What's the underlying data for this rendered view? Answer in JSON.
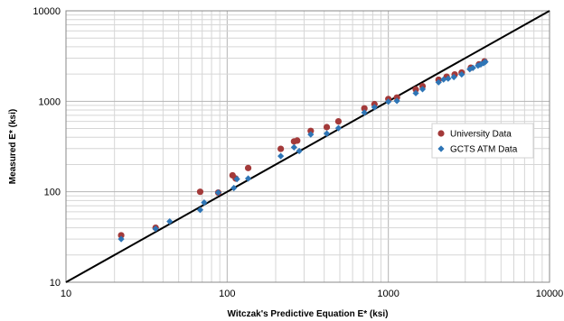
{
  "chart_data": {
    "type": "scatter",
    "title": "",
    "xlabel": "Witczak's Predictive Equation E* (ksi)",
    "ylabel": "Measured  E* (ksi)",
    "xscale": "log",
    "yscale": "log",
    "xlim": [
      10,
      10000
    ],
    "ylim": [
      10,
      10000
    ],
    "x_ticks": [
      "10",
      "100",
      "1000",
      "10000"
    ],
    "y_ticks": [
      "10",
      "100",
      "1000",
      "10000"
    ],
    "grid": true,
    "legend_position": "right",
    "equality_line": {
      "from": [
        10,
        10
      ],
      "to": [
        10000,
        10000
      ],
      "color": "#000000"
    },
    "series": [
      {
        "name": "University Data",
        "marker": "circle",
        "color": "#a33a3a",
        "points": [
          [
            22,
            33
          ],
          [
            36,
            40
          ],
          [
            68,
            100
          ],
          [
            88,
            98
          ],
          [
            108,
            152
          ],
          [
            113,
            140
          ],
          [
            135,
            183
          ],
          [
            215,
            298
          ],
          [
            260,
            360
          ],
          [
            272,
            368
          ],
          [
            330,
            470
          ],
          [
            415,
            518
          ],
          [
            490,
            600
          ],
          [
            710,
            835
          ],
          [
            820,
            930
          ],
          [
            1000,
            1060
          ],
          [
            1130,
            1100
          ],
          [
            1480,
            1350
          ],
          [
            1630,
            1470
          ],
          [
            2050,
            1730
          ],
          [
            2300,
            1870
          ],
          [
            2580,
            1980
          ],
          [
            2850,
            2080
          ],
          [
            3250,
            2350
          ],
          [
            3650,
            2560
          ],
          [
            3950,
            2760
          ]
        ]
      },
      {
        "name": "GCTS ATM Data",
        "marker": "diamond",
        "color": "#2e75b6",
        "points": [
          [
            22,
            30
          ],
          [
            36,
            39
          ],
          [
            44,
            47
          ],
          [
            68,
            63
          ],
          [
            72,
            76
          ],
          [
            88,
            98
          ],
          [
            110,
            110
          ],
          [
            115,
            138
          ],
          [
            135,
            140
          ],
          [
            215,
            248
          ],
          [
            260,
            310
          ],
          [
            280,
            282
          ],
          [
            330,
            430
          ],
          [
            415,
            440
          ],
          [
            490,
            505
          ],
          [
            710,
            750
          ],
          [
            820,
            860
          ],
          [
            1000,
            990
          ],
          [
            1130,
            1010
          ],
          [
            1480,
            1230
          ],
          [
            1630,
            1360
          ],
          [
            2050,
            1620
          ],
          [
            2200,
            1740
          ],
          [
            2350,
            1780
          ],
          [
            2550,
            1850
          ],
          [
            2850,
            1980
          ],
          [
            3200,
            2260
          ],
          [
            3350,
            2340
          ],
          [
            3600,
            2480
          ],
          [
            3750,
            2560
          ],
          [
            3900,
            2640
          ],
          [
            4000,
            2730
          ]
        ]
      }
    ]
  }
}
